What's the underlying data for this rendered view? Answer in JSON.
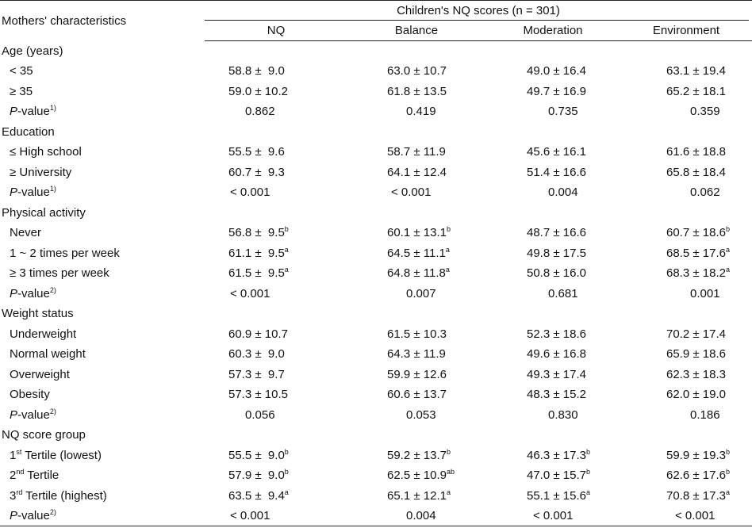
{
  "header": {
    "row_label": "Mothers' characteristics",
    "group_label": "Children's NQ scores (n = 301)",
    "columns": [
      "NQ",
      "Balance",
      "Moderation",
      "Environment"
    ]
  },
  "rows": [
    {
      "kind": "section",
      "label": "Age (years)"
    },
    {
      "kind": "data",
      "label": "< 35",
      "cells": [
        {
          "v": "58.8 ±  9.0",
          "s": ""
        },
        {
          "v": "63.0 ± 10.7",
          "s": ""
        },
        {
          "v": "49.0 ± 16.4",
          "s": ""
        },
        {
          "v": "63.1 ± 19.4",
          "s": ""
        }
      ]
    },
    {
      "kind": "data",
      "label": "≥ 35",
      "cells": [
        {
          "v": "59.0 ± 10.2",
          "s": ""
        },
        {
          "v": "61.8 ± 13.5",
          "s": ""
        },
        {
          "v": "49.7 ± 16.9",
          "s": ""
        },
        {
          "v": "65.2 ± 18.1",
          "s": ""
        }
      ]
    },
    {
      "kind": "p",
      "label": "-value",
      "p_letter": "P",
      "p_sup": "1)",
      "cells": [
        "0.862",
        "0.419",
        "0.735",
        "0.359"
      ]
    },
    {
      "kind": "section",
      "label": "Education"
    },
    {
      "kind": "data",
      "label": "≤ High school",
      "cells": [
        {
          "v": "55.5 ±  9.6",
          "s": ""
        },
        {
          "v": "58.7 ± 11.9",
          "s": ""
        },
        {
          "v": "45.6 ± 16.1",
          "s": ""
        },
        {
          "v": "61.6 ± 18.8",
          "s": ""
        }
      ]
    },
    {
      "kind": "data",
      "label": "≥ University",
      "cells": [
        {
          "v": "60.7 ±  9.3",
          "s": ""
        },
        {
          "v": "64.1 ± 12.4",
          "s": ""
        },
        {
          "v": "51.4 ± 16.6",
          "s": ""
        },
        {
          "v": "65.8 ± 18.4",
          "s": ""
        }
      ]
    },
    {
      "kind": "p",
      "label": "-value",
      "p_letter": "P",
      "p_sup": "1)",
      "cells": [
        "< 0.001",
        "< 0.001",
        "0.004",
        "0.062"
      ]
    },
    {
      "kind": "section",
      "label": "Physical activity"
    },
    {
      "kind": "data",
      "label": "Never",
      "cells": [
        {
          "v": "56.8 ±  9.5",
          "s": "b"
        },
        {
          "v": "60.1 ± 13.1",
          "s": "b"
        },
        {
          "v": "48.7 ± 16.6",
          "s": ""
        },
        {
          "v": "60.7 ± 18.6",
          "s": "b"
        }
      ]
    },
    {
      "kind": "data",
      "label": "1 ~ 2 times per week",
      "cells": [
        {
          "v": "61.1 ±  9.5",
          "s": "a"
        },
        {
          "v": "64.5 ± 11.1",
          "s": "a"
        },
        {
          "v": "49.8 ± 17.5",
          "s": ""
        },
        {
          "v": "68.5 ± 17.6",
          "s": "a"
        }
      ]
    },
    {
      "kind": "data",
      "label": "≥ 3 times per week",
      "cells": [
        {
          "v": "61.5 ±  9.5",
          "s": "a"
        },
        {
          "v": "64.8 ± 11.8",
          "s": "a"
        },
        {
          "v": "50.8 ± 16.0",
          "s": ""
        },
        {
          "v": "68.3 ± 18.2",
          "s": "a"
        }
      ]
    },
    {
      "kind": "p",
      "label": "-value",
      "p_letter": "P",
      "p_sup": "2)",
      "cells": [
        "< 0.001",
        "0.007",
        "0.681",
        "0.001"
      ]
    },
    {
      "kind": "section",
      "label": "Weight status"
    },
    {
      "kind": "data",
      "label": "Underweight",
      "cells": [
        {
          "v": "60.9 ± 10.7",
          "s": ""
        },
        {
          "v": "61.5 ± 10.3",
          "s": ""
        },
        {
          "v": "52.3 ± 18.6",
          "s": ""
        },
        {
          "v": "70.2 ± 17.4",
          "s": ""
        }
      ]
    },
    {
      "kind": "data",
      "label": "Normal weight",
      "cells": [
        {
          "v": "60.3 ±  9.0",
          "s": ""
        },
        {
          "v": "64.3 ± 11.9",
          "s": ""
        },
        {
          "v": "49.6 ± 16.8",
          "s": ""
        },
        {
          "v": "65.9 ± 18.6",
          "s": ""
        }
      ]
    },
    {
      "kind": "data",
      "label": "Overweight",
      "cells": [
        {
          "v": "57.3 ±  9.7",
          "s": ""
        },
        {
          "v": "59.9 ± 12.6",
          "s": ""
        },
        {
          "v": "49.3 ± 17.4",
          "s": ""
        },
        {
          "v": "62.3 ± 18.3",
          "s": ""
        }
      ]
    },
    {
      "kind": "data",
      "label": "Obesity",
      "cells": [
        {
          "v": "57.3 ± 10.5",
          "s": ""
        },
        {
          "v": "60.6 ± 13.7",
          "s": ""
        },
        {
          "v": "48.3 ± 15.2",
          "s": ""
        },
        {
          "v": "62.0 ± 19.0",
          "s": ""
        }
      ]
    },
    {
      "kind": "p",
      "label": "-value",
      "p_letter": "P",
      "p_sup": "2)",
      "cells": [
        "0.056",
        "0.053",
        "0.830",
        "0.186"
      ]
    },
    {
      "kind": "section",
      "label": "NQ score group"
    },
    {
      "kind": "tertile",
      "num": "1",
      "ord": "st",
      "label": " Tertile (lowest)",
      "cells": [
        {
          "v": "55.5 ±  9.0",
          "s": "b"
        },
        {
          "v": "59.2 ± 13.7",
          "s": "b"
        },
        {
          "v": "46.3 ± 17.3",
          "s": "b"
        },
        {
          "v": "59.9 ± 19.3",
          "s": "b"
        }
      ]
    },
    {
      "kind": "tertile",
      "num": "2",
      "ord": "nd",
      "label": " Tertile",
      "cells": [
        {
          "v": "57.9 ±  9.0",
          "s": "b"
        },
        {
          "v": "62.5 ± 10.9",
          "s": "ab"
        },
        {
          "v": "47.0 ± 15.7",
          "s": "b"
        },
        {
          "v": "62.6 ± 17.6",
          "s": "b"
        }
      ]
    },
    {
      "kind": "tertile",
      "num": "3",
      "ord": "rd",
      "label": " Tertile (highest)",
      "cells": [
        {
          "v": "63.5 ±  9.4",
          "s": "a"
        },
        {
          "v": "65.1 ± 12.1",
          "s": "a"
        },
        {
          "v": "55.1 ± 15.6",
          "s": "a"
        },
        {
          "v": "70.8 ± 17.3",
          "s": "a"
        }
      ]
    },
    {
      "kind": "p",
      "label": "-value",
      "p_letter": "P",
      "p_sup": "2)",
      "cells": [
        "< 0.001",
        "0.004",
        "< 0.001",
        "< 0.001"
      ]
    }
  ]
}
